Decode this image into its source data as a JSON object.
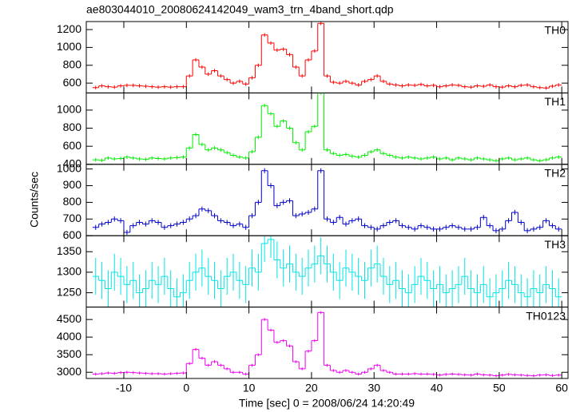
{
  "chart_data": {
    "type": "histogram",
    "title": "ae803044010_20080624142049_wam3_trn_4band_short.qdp",
    "xlabel": "Time [sec] 0 = 2008/06/24 14:20:49",
    "ylabel": "Counts/sec",
    "xlim": [
      -16,
      61
    ],
    "xticks": [
      -10,
      0,
      10,
      20,
      30,
      40,
      50,
      60
    ],
    "bins": [
      -15,
      -14,
      -13,
      -12,
      -11,
      -10,
      -9,
      -8,
      -7,
      -6,
      -5,
      -4,
      -3,
      -2,
      -1,
      0,
      1,
      2,
      3,
      4,
      5,
      6,
      7,
      8,
      9,
      10,
      11,
      12,
      13,
      14,
      15,
      16,
      17,
      18,
      19,
      20,
      21,
      22,
      23,
      24,
      25,
      26,
      27,
      28,
      29,
      30,
      31,
      32,
      33,
      34,
      35,
      36,
      37,
      38,
      39,
      40,
      41,
      42,
      43,
      44,
      45,
      46,
      47,
      48,
      49,
      50,
      51,
      52,
      53,
      54,
      55,
      56,
      57,
      58,
      59,
      60
    ],
    "panels": [
      {
        "name": "TH0",
        "color": "#ff0000",
        "ylim": [
          490,
          1290
        ],
        "yticks": [
          600,
          800,
          1000,
          1200
        ],
        "yerr": 20,
        "values": [
          550,
          570,
          560,
          555,
          570,
          575,
          575,
          570,
          565,
          560,
          555,
          560,
          555,
          560,
          560,
          680,
          860,
          780,
          700,
          740,
          680,
          640,
          600,
          620,
          590,
          660,
          800,
          1140,
          1050,
          970,
          980,
          920,
          780,
          680,
          860,
          960,
          1270,
          680,
          610,
          600,
          620,
          600,
          580,
          620,
          640,
          680,
          620,
          590,
          580,
          570,
          580,
          575,
          585,
          570,
          575,
          560,
          570,
          580,
          575,
          560,
          555,
          570,
          565,
          580,
          560,
          555,
          570,
          560,
          575,
          580,
          560,
          550,
          545,
          565,
          580
        ]
      },
      {
        "name": "TH1",
        "color": "#00ee00",
        "ylim": [
          400,
          1190
        ],
        "yticks": [
          400,
          600,
          800,
          1000
        ],
        "yerr": 20,
        "values": [
          450,
          445,
          470,
          460,
          465,
          480,
          470,
          460,
          455,
          470,
          465,
          460,
          470,
          475,
          480,
          580,
          730,
          620,
          560,
          580,
          560,
          530,
          500,
          480,
          470,
          540,
          700,
          1050,
          960,
          820,
          880,
          800,
          640,
          560,
          760,
          820,
          1190,
          560,
          520,
          500,
          510,
          490,
          480,
          500,
          540,
          560,
          520,
          500,
          480,
          470,
          480,
          470,
          460,
          470,
          480,
          460,
          470,
          450,
          470,
          460,
          450,
          470,
          460,
          450,
          440,
          460,
          470,
          450,
          460,
          470,
          450,
          440,
          450,
          470,
          480
        ]
      },
      {
        "name": "TH2",
        "color": "#0000cc",
        "ylim": [
          600,
          1028
        ],
        "yticks": [
          600,
          700,
          800,
          900,
          1000
        ],
        "yerr": 15,
        "values": [
          650,
          670,
          680,
          700,
          690,
          620,
          660,
          680,
          670,
          690,
          680,
          650,
          660,
          670,
          680,
          700,
          720,
          760,
          750,
          720,
          690,
          680,
          660,
          670,
          650,
          720,
          800,
          990,
          900,
          780,
          800,
          810,
          720,
          730,
          740,
          760,
          990,
          700,
          680,
          710,
          670,
          690,
          700,
          660,
          650,
          640,
          660,
          680,
          690,
          660,
          650,
          640,
          660,
          650,
          640,
          640,
          650,
          660,
          650,
          640,
          640,
          650,
          710,
          660,
          630,
          640,
          690,
          740,
          680,
          630,
          640,
          650,
          690,
          660,
          640
        ]
      },
      {
        "name": "TH3",
        "color": "#00e5e5",
        "ylim": [
          1215,
          1389
        ],
        "yticks": [
          1250,
          1300,
          1350
        ],
        "yerr": 45,
        "values": [
          1290,
          1280,
          1260,
          1300,
          1290,
          1270,
          1280,
          1250,
          1260,
          1280,
          1270,
          1290,
          1260,
          1240,
          1250,
          1280,
          1300,
          1310,
          1290,
          1280,
          1260,
          1290,
          1300,
          1280,
          1270,
          1310,
          1300,
          1370,
          1380,
          1330,
          1310,
          1320,
          1300,
          1290,
          1310,
          1320,
          1340,
          1320,
          1300,
          1280,
          1310,
          1300,
          1290,
          1280,
          1310,
          1320,
          1290,
          1270,
          1280,
          1260,
          1250,
          1270,
          1290,
          1280,
          1260,
          1270,
          1250,
          1260,
          1270,
          1290,
          1260,
          1250,
          1270,
          1240,
          1250,
          1260,
          1280,
          1270,
          1250,
          1240,
          1260,
          1250,
          1270,
          1260,
          1240
        ]
      },
      {
        "name": "TH0123",
        "color": "#ee00ee",
        "ylim": [
          2824,
          4853
        ],
        "yticks": [
          3000,
          3500,
          4000,
          4500
        ],
        "yerr": 40,
        "values": [
          2950,
          2960,
          2980,
          2970,
          2990,
          3000,
          2990,
          2980,
          2970,
          2960,
          2960,
          2950,
          2960,
          2970,
          2980,
          3250,
          3650,
          3400,
          3200,
          3300,
          3200,
          3100,
          3000,
          3000,
          2950,
          3200,
          3500,
          4500,
          4200,
          3850,
          3900,
          3750,
          3300,
          3100,
          3600,
          3900,
          4700,
          3200,
          3050,
          3000,
          3050,
          3000,
          2950,
          3000,
          3100,
          3200,
          3050,
          3000,
          2950,
          2950,
          2950,
          2960,
          2950,
          2950,
          2940,
          2920,
          2940,
          2950,
          2940,
          2930,
          2920,
          2950,
          2930,
          2920,
          2900,
          2920,
          2940,
          2930,
          2920,
          2910,
          2900,
          2920,
          2930,
          2910,
          2920
        ]
      }
    ]
  }
}
